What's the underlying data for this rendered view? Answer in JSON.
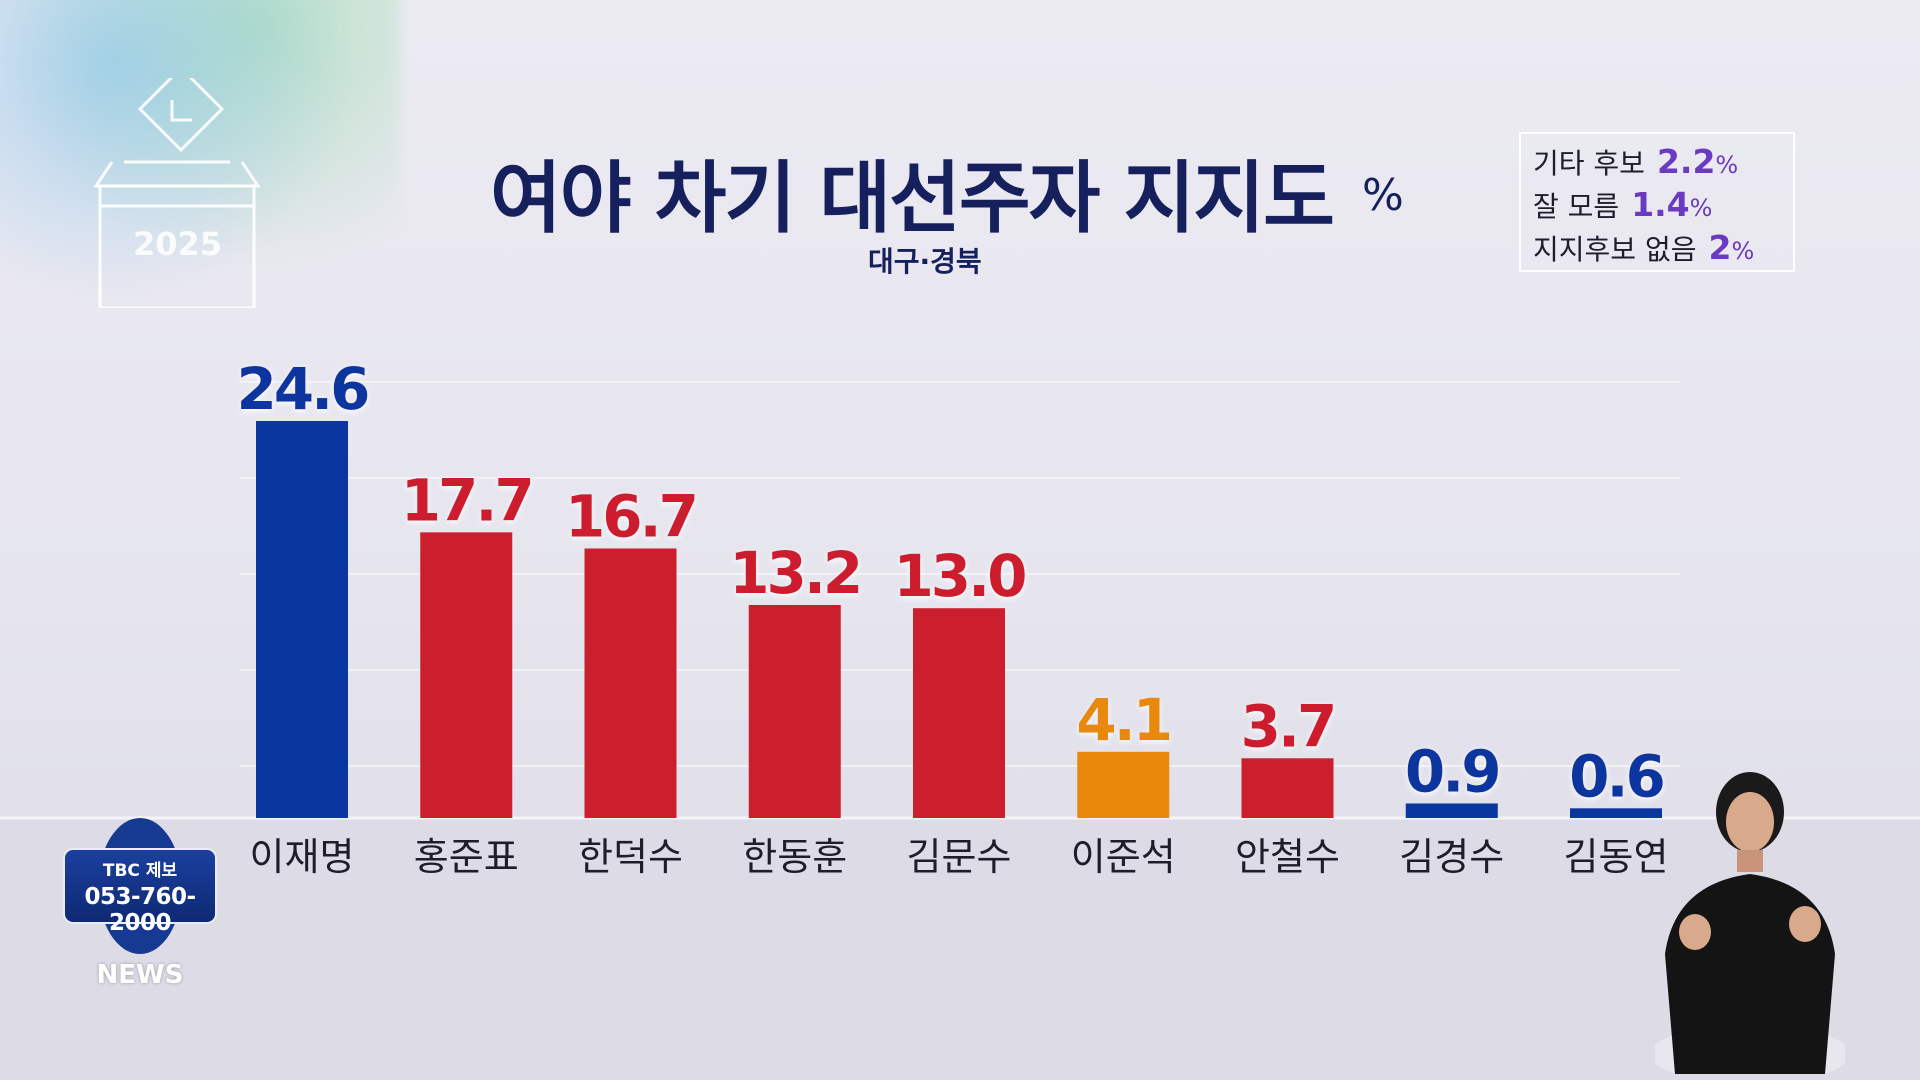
{
  "title": "여야 차기 대선주자 지지도",
  "title_unit": "%",
  "subtitle": "대구·경북",
  "ballot_year": "2025",
  "side_stats": [
    {
      "label": "기타 후보",
      "value": "2.2",
      "unit": "%"
    },
    {
      "label": "잘 모름",
      "value": "1.4",
      "unit": "%"
    },
    {
      "label": "지지후보 없음",
      "value": "2",
      "unit": "%"
    }
  ],
  "colors": {
    "blue": "#0a36a0",
    "red": "#cc1f2e",
    "orange": "#e8890c",
    "title": "#16205c"
  },
  "chart_data": {
    "type": "bar",
    "title": "여야 차기 대선주자 지지도",
    "unit": "%",
    "categories": [
      "이재명",
      "홍준표",
      "한덕수",
      "한동훈",
      "김문수",
      "이준석",
      "안철수",
      "김경수",
      "김동연"
    ],
    "values": [
      24.6,
      17.7,
      16.7,
      13.2,
      13.0,
      4.1,
      3.7,
      0.9,
      0.6
    ],
    "value_labels": [
      "24.6",
      "17.7",
      "16.7",
      "13.2",
      "13.0",
      "4.1",
      "3.7",
      "0.9",
      "0.6"
    ],
    "bar_colors": [
      "blue",
      "red",
      "red",
      "red",
      "red",
      "orange",
      "red",
      "blue",
      "blue"
    ],
    "ylim": [
      0,
      24.6
    ],
    "grid": true
  },
  "tbc": {
    "label": "TBC 제보",
    "phone": "053-760-2000",
    "news": "NEWS"
  }
}
